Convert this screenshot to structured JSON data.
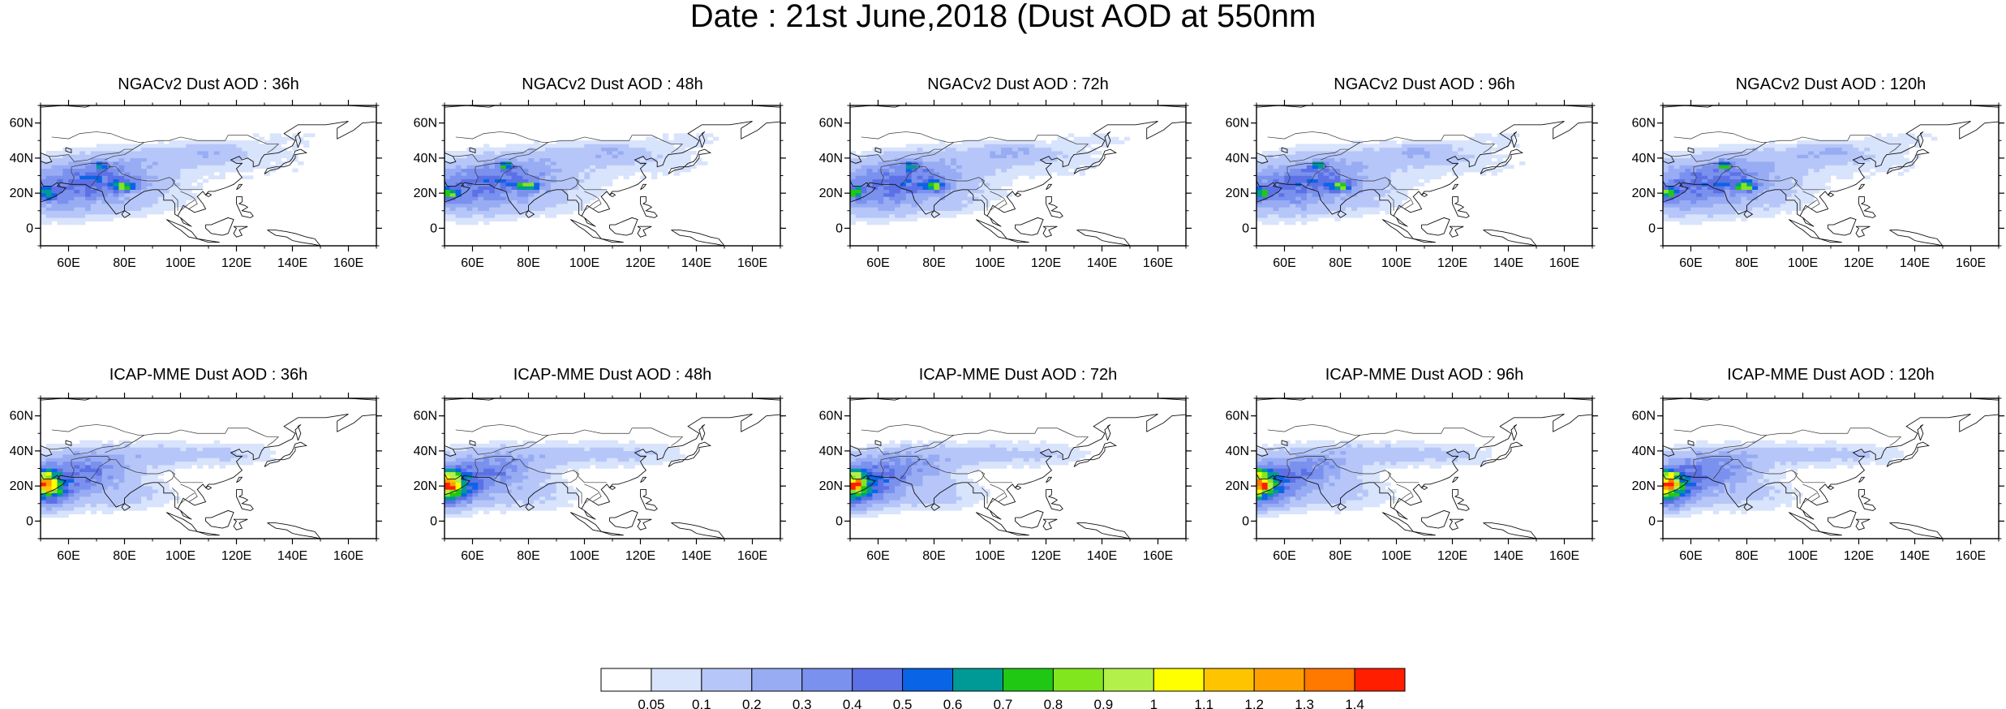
{
  "title": "Date : 21st June,2018 (Dust AOD at 550nm",
  "panels": [
    {
      "title": "NGACv2 Dust AOD : 36h",
      "model": "ngac",
      "lead": 36
    },
    {
      "title": "NGACv2 Dust AOD : 48h",
      "model": "ngac",
      "lead": 48
    },
    {
      "title": "NGACv2 Dust AOD : 72h",
      "model": "ngac",
      "lead": 72
    },
    {
      "title": "NGACv2 Dust AOD : 96h",
      "model": "ngac",
      "lead": 96
    },
    {
      "title": "NGACv2 Dust AOD : 120h",
      "model": "ngac",
      "lead": 120
    },
    {
      "title": "ICAP-MME Dust AOD : 36h",
      "model": "icap",
      "lead": 36
    },
    {
      "title": "ICAP-MME Dust AOD : 48h",
      "model": "icap",
      "lead": 48
    },
    {
      "title": "ICAP-MME Dust AOD : 72h",
      "model": "icap",
      "lead": 72
    },
    {
      "title": "ICAP-MME Dust AOD : 96h",
      "model": "icap",
      "lead": 96
    },
    {
      "title": "ICAP-MME Dust AOD : 120h",
      "model": "icap",
      "lead": 120
    }
  ],
  "lon_ticks": [
    "60E",
    "80E",
    "100E",
    "120E",
    "140E",
    "160E"
  ],
  "lat_ticks": [
    "60N",
    "40N",
    "20N",
    "0"
  ],
  "map_extent": {
    "lon": [
      50,
      170
    ],
    "lat": [
      -10,
      70
    ]
  },
  "colorbar": {
    "labels": [
      "0.05",
      "0.1",
      "0.2",
      "0.3",
      "0.4",
      "0.5",
      "0.6",
      "0.7",
      "0.8",
      "0.9",
      "1",
      "1.1",
      "1.2",
      "1.3",
      "1.4"
    ],
    "colors": [
      "#ffffff",
      "#d8e3fc",
      "#b6c6f8",
      "#98acf4",
      "#7b91ee",
      "#5d71e6",
      "#0a64e6",
      "#009a96",
      "#20c814",
      "#82e61e",
      "#b4f04a",
      "#ffff00",
      "#ffc400",
      "#ffa000",
      "#ff7800",
      "#ff1e00"
    ]
  }
}
